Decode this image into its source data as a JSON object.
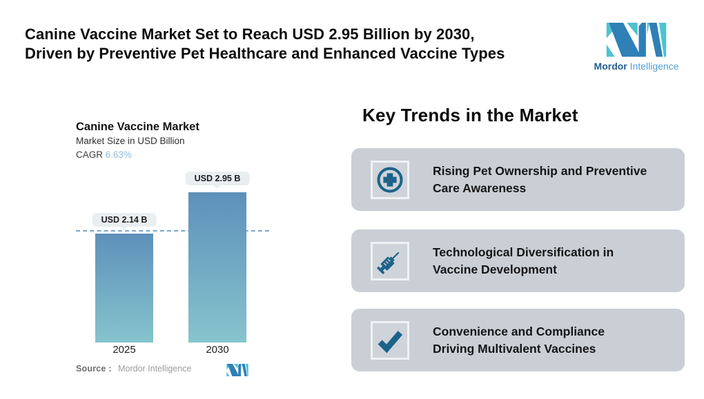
{
  "header": {
    "title_line1": "Canine Vaccine Market Set to Reach USD 2.95 Billion by 2030,",
    "title_line2": "Driven by Preventive Pet Healthcare and Enhanced Vaccine Types",
    "logo": {
      "brand_bold": "Mordor",
      "brand_light": "Intelligence"
    }
  },
  "chart_data": {
    "type": "bar",
    "title": "Canine Vaccine Market",
    "subtitle": "Market Size in USD Billion",
    "cagr_label": "CAGR",
    "cagr_value": "6.63%",
    "categories": [
      "2025",
      "2030"
    ],
    "values": [
      2.14,
      2.95
    ],
    "data_labels": [
      "USD 2.14 B",
      "USD 2.95 B"
    ],
    "ylim": [
      0,
      2.95
    ],
    "reference_line_value": 2.14,
    "grid": "off",
    "legend": "none",
    "source_label": "Source :",
    "source_value": "Mordor Intelligence"
  },
  "trends": {
    "heading": "Key Trends in the Market",
    "items": [
      {
        "icon": "medical-plus-circle-icon",
        "line1": "Rising Pet Ownership and Preventive",
        "line2": "Care Awareness"
      },
      {
        "icon": "syringe-icon",
        "line1": "Technological Diversification in",
        "line2": "Vaccine Development"
      },
      {
        "icon": "checkmark-icon",
        "line1": "Convenience and Compliance",
        "line2": "Driving Multivalent Vaccines"
      }
    ]
  },
  "colors": {
    "accent_icon": "#1d6389",
    "card_bg": "#cacfd6",
    "tooltip_bg": "#e9eef0",
    "bar_gradient_top": "#5e90ba",
    "bar_gradient_bottom": "#86c4cd",
    "reference_line": "#79a9cd",
    "logo_blue": "#2e80b7",
    "logo_teal": "#4ec3ce",
    "cagr_value_color": "#92bada"
  }
}
